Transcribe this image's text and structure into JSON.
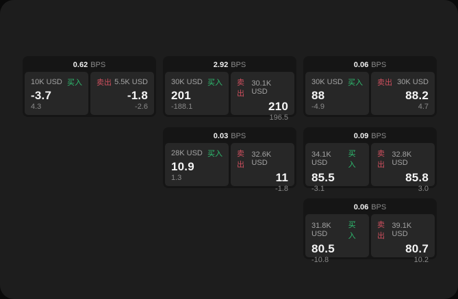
{
  "labels": {
    "bps_unit": "BPS",
    "buy": "买入",
    "sell": "卖出"
  },
  "colors": {
    "page_bg": "#1d1d1d",
    "card_bg": "#151515",
    "panel_bg": "#272727",
    "buy_green": "#2ebd70",
    "sell_red": "#cf4f5e"
  },
  "cards": [
    {
      "spread": "0.62",
      "buy": {
        "amount": "10K USD",
        "price": "-3.7",
        "delta": "4.3"
      },
      "sell": {
        "amount": "5.5K USD",
        "price": "-1.8",
        "delta": "-2.6"
      }
    },
    {
      "spread": "2.92",
      "buy": {
        "amount": "30K USD",
        "price": "201",
        "delta": "-188.1"
      },
      "sell": {
        "amount": "30.1K USD",
        "price": "210",
        "delta": "196.5"
      }
    },
    {
      "spread": "0.06",
      "buy": {
        "amount": "30K USD",
        "price": "88",
        "delta": "-4.9"
      },
      "sell": {
        "amount": "30K USD",
        "price": "88.2",
        "delta": "4.7"
      }
    },
    {
      "spread": "0.03",
      "buy": {
        "amount": "28K USD",
        "price": "10.9",
        "delta": "1.3"
      },
      "sell": {
        "amount": "32.6K USD",
        "price": "11",
        "delta": "-1.8"
      }
    },
    {
      "spread": "0.09",
      "buy": {
        "amount": "34.1K USD",
        "price": "85.5",
        "delta": "-3.1"
      },
      "sell": {
        "amount": "32.8K USD",
        "price": "85.8",
        "delta": "3.0"
      }
    },
    {
      "spread": "0.06",
      "buy": {
        "amount": "31.8K USD",
        "price": "80.5",
        "delta": "-10.8"
      },
      "sell": {
        "amount": "39.1K USD",
        "price": "80.7",
        "delta": "10.2"
      }
    }
  ]
}
